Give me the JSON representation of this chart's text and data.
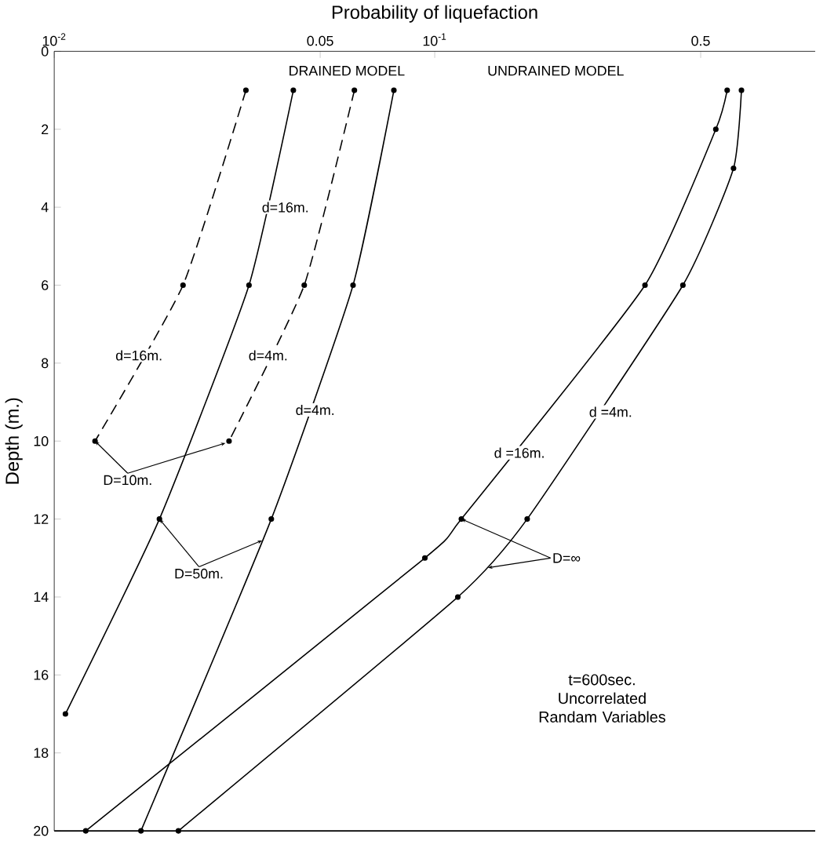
{
  "chart_data": {
    "type": "line",
    "xlabel": "Probability of liquefaction",
    "ylabel": "Depth (m.)",
    "log": "x",
    "xlim": [
      0.01,
      1
    ],
    "ylim": [
      20,
      0
    ],
    "xticks": [
      {
        "value": 0.01,
        "label": "10$^{-2}$"
      },
      0.05,
      {
        "value": 0.1,
        "label": "10$^{-1}$"
      },
      0.5
    ],
    "yticks": [
      0,
      2,
      4,
      6,
      8,
      10,
      12,
      14,
      16,
      18,
      20
    ],
    "marker": "circle",
    "grid": false,
    "legend": false,
    "series": [
      {
        "name": "d=16m.",
        "color": "#000000",
        "line_style": "dashed",
        "x": [
          0.0319,
          0.0218,
          0.0128
        ],
        "values": [
          1,
          6,
          10
        ]
      },
      {
        "name": "d=16m.",
        "color": "#000000",
        "line_style": "solid",
        "x": [
          0.0425,
          0.0325,
          0.0189,
          0.0107
        ],
        "values": [
          1,
          6,
          12,
          17
        ]
      },
      {
        "name": "d=4m.",
        "color": "#000000",
        "line_style": "dashed",
        "x": [
          0.0615,
          0.0454,
          0.0288
        ],
        "values": [
          1,
          6,
          10
        ]
      },
      {
        "name": "d=4m.",
        "color": "#000000",
        "line_style": "solid",
        "x": [
          0.0781,
          0.061,
          0.0372,
          0.0169
        ],
        "values": [
          1,
          6,
          12,
          20
        ]
      },
      {
        "name": "d =16m.",
        "color": "#000000",
        "line_style": "solid",
        "x": [
          0.587,
          0.548,
          0.357,
          0.1175,
          0.0942,
          0.0121
        ],
        "values": [
          1,
          2,
          6,
          12,
          13,
          20
        ]
      },
      {
        "name": "d =4m.",
        "color": "#000000",
        "line_style": "solid",
        "x": [
          0.64,
          0.61,
          0.449,
          0.175,
          0.115,
          0.0212
        ],
        "values": [
          1,
          3,
          6,
          12,
          14,
          20
        ]
      }
    ],
    "annotations": [
      "DRAINED MODEL",
      "UNDRAINED MODEL",
      {
        "text": "D=10m.",
        "x": 0.0128,
        "y": 10
      },
      {
        "text": "D=50m.",
        "x": 0.0189,
        "y": 12
      },
      {
        "text": "D=∞",
        "x": 0.1175,
        "y": 12
      },
      "t=600sec.",
      "Uncorrelated Randam Variables"
    ]
  }
}
